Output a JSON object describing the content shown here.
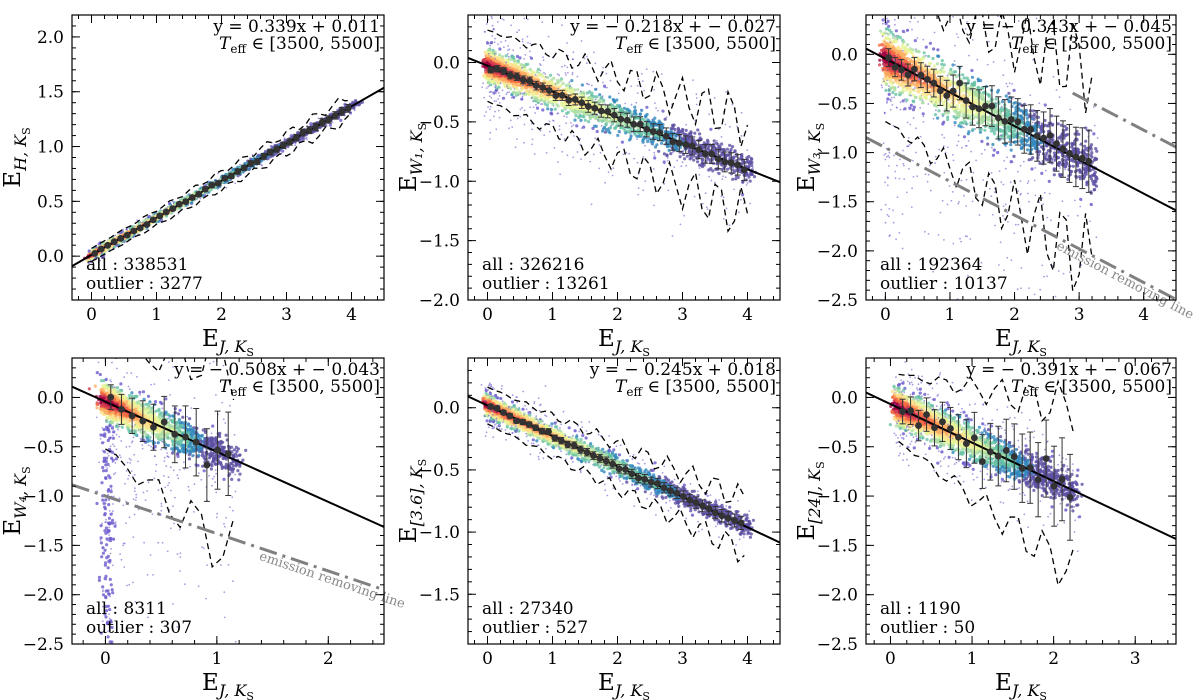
{
  "figure": {
    "x_label": {
      "main": "E",
      "sub": "J, K",
      "subsub": "S"
    }
  },
  "chart_data": [
    {
      "type": "scatter",
      "panel": "H",
      "xlabel": {
        "main": "E",
        "sub": "J, K",
        "subsub": "S"
      },
      "ylabel": {
        "main": "E",
        "sub": "H, K",
        "subsub": "S"
      },
      "xlim": [
        -0.3,
        4.5
      ],
      "ylim": [
        -0.4,
        2.2
      ],
      "xticks": [
        0,
        1,
        2,
        3,
        4
      ],
      "yticks": [
        0.0,
        0.5,
        1.0,
        1.5,
        2.0
      ],
      "x_ticklabels": [
        "0",
        "1",
        "2",
        "3",
        "4"
      ],
      "y_ticklabels": [
        "0.0",
        "0.5",
        "1.0",
        "1.5",
        "2.0"
      ],
      "fit": {
        "slope": 0.339,
        "intercept": 0.011,
        "text": "y = 0.339x + 0.011"
      },
      "teff_text": "∈ [3500, 5500]",
      "counts": {
        "all": "all : 338531",
        "outlier": "outlier : 3277"
      },
      "x_range": [
        0,
        4.0
      ],
      "spread": 0.04,
      "scatter_halo": 0.03,
      "n_bins": 40,
      "err_scale": 0.02,
      "emission_line": null
    },
    {
      "type": "scatter",
      "panel": "W1",
      "xlabel": {
        "main": "E",
        "sub": "J, K",
        "subsub": "S"
      },
      "ylabel": {
        "main": "E",
        "sub": "W₁, K",
        "subsub": "S"
      },
      "xlim": [
        -0.3,
        4.5
      ],
      "ylim": [
        -2.0,
        0.4
      ],
      "xticks": [
        0,
        1,
        2,
        3,
        4
      ],
      "yticks": [
        -2.0,
        -1.5,
        -1.0,
        -0.5,
        0.0
      ],
      "x_ticklabels": [
        "0",
        "1",
        "2",
        "3",
        "4"
      ],
      "y_ticklabels": [
        "−2.0",
        "−1.5",
        "−1.0",
        "−0.5",
        "0.0"
      ],
      "fit": {
        "slope": -0.218,
        "intercept": -0.027,
        "text": "y = − 0.218x + − 0.027"
      },
      "teff_text": "∈ [3500, 5500]",
      "counts": {
        "all": "all : 326216",
        "outlier": "outlier : 13261"
      },
      "x_range": [
        0,
        4.0
      ],
      "spread": 0.15,
      "scatter_halo": 0.3,
      "n_bins": 40,
      "err_scale": 0.05,
      "emission_line": null
    },
    {
      "type": "scatter",
      "panel": "W3",
      "xlabel": {
        "main": "E",
        "sub": "J, K",
        "subsub": "S"
      },
      "ylabel": {
        "main": "E",
        "sub": "W₃, K",
        "subsub": "S"
      },
      "xlim": [
        -0.3,
        4.5
      ],
      "ylim": [
        -2.5,
        0.4
      ],
      "xticks": [
        0,
        1,
        2,
        3,
        4
      ],
      "yticks": [
        -2.5,
        -2.0,
        -1.5,
        -1.0,
        -0.5,
        0.0
      ],
      "x_ticklabels": [
        "0",
        "1",
        "2",
        "3",
        "4"
      ],
      "y_ticklabels": [
        "−2.5",
        "−2.0",
        "−1.5",
        "−1.0",
        "−0.5",
        "0.0"
      ],
      "fit": {
        "slope": -0.343,
        "intercept": -0.045,
        "text": "y = − 0.343x + − 0.045"
      },
      "teff_text": "∈ [3500, 5500]",
      "counts": {
        "all": "all : 192364",
        "outlier": "outlier : 10137"
      },
      "x_range": [
        0,
        3.2
      ],
      "spread": 0.3,
      "scatter_halo": 0.7,
      "n_bins": 32,
      "err_scale": 0.18,
      "emission_line": {
        "slope": -0.343,
        "intercept": -0.95,
        "label": "emission removing line"
      }
    },
    {
      "type": "scatter",
      "panel": "W4",
      "xlabel": {
        "main": "E",
        "sub": "J, K",
        "subsub": "S"
      },
      "ylabel": {
        "main": "E",
        "sub": "W₄, K",
        "subsub": "S"
      },
      "xlim": [
        -0.3,
        2.5
      ],
      "ylim": [
        -2.5,
        0.4
      ],
      "xticks": [
        0,
        1,
        2
      ],
      "yticks": [
        -2.5,
        -2.0,
        -1.5,
        -1.0,
        -0.5,
        0.0
      ],
      "x_ticklabels": [
        "0",
        "1",
        "2"
      ],
      "y_ticklabels": [
        "−2.5",
        "−2.0",
        "−1.5",
        "−1.0",
        "−0.5",
        "0.0"
      ],
      "fit": {
        "slope": -0.508,
        "intercept": -0.043,
        "text": "y = − 0.508x + − 0.043"
      },
      "teff_text": "∈ [3500, 5500]",
      "counts": {
        "all": "all : 8311",
        "outlier": "outlier : 307"
      },
      "x_range": [
        0,
        1.15
      ],
      "spread": 0.2,
      "scatter_halo": 0.6,
      "n_bins": 12,
      "err_scale": 0.25,
      "emission_line": {
        "slope": -0.38,
        "intercept": -1.0,
        "label": "emission removing line"
      }
    },
    {
      "type": "scatter",
      "panel": "I1",
      "xlabel": {
        "main": "E",
        "sub": "J, K",
        "subsub": "S"
      },
      "ylabel": {
        "main": "E",
        "sub": "[3.6], K",
        "subsub": "S"
      },
      "xlim": [
        -0.3,
        4.5
      ],
      "ylim": [
        -1.9,
        0.4
      ],
      "xticks": [
        0,
        1,
        2,
        3,
        4
      ],
      "yticks": [
        -1.5,
        -1.0,
        -0.5,
        0.0
      ],
      "x_ticklabels": [
        "0",
        "1",
        "2",
        "3",
        "4"
      ],
      "y_ticklabels": [
        "−1.5",
        "−1.0",
        "−0.5",
        "0.0"
      ],
      "fit": {
        "slope": -0.245,
        "intercept": 0.018,
        "text": "y = − 0.245x + 0.018"
      },
      "teff_text": "∈ [3500, 5500]",
      "counts": {
        "all": "all : 27340",
        "outlier": "outlier : 527"
      },
      "x_range": [
        0,
        3.95
      ],
      "spread": 0.09,
      "scatter_halo": 0.1,
      "n_bins": 40,
      "err_scale": 0.03,
      "emission_line": null
    },
    {
      "type": "scatter",
      "panel": "M1",
      "xlabel": {
        "main": "E",
        "sub": "J, K",
        "subsub": "S"
      },
      "ylabel": {
        "main": "E",
        "sub": "[24], K",
        "subsub": "S"
      },
      "xlim": [
        -0.3,
        3.5
      ],
      "ylim": [
        -2.5,
        0.4
      ],
      "xticks": [
        0,
        1,
        2,
        3
      ],
      "yticks": [
        -2.5,
        -2.0,
        -1.5,
        -1.0,
        -0.5,
        0.0
      ],
      "x_ticklabels": [
        "0",
        "1",
        "2",
        "3"
      ],
      "y_ticklabels": [
        "−2.5",
        "−2.0",
        "−1.5",
        "−1.0",
        "−0.5",
        "0.0"
      ],
      "fit": {
        "slope": -0.391,
        "intercept": -0.067,
        "text": "y = − 0.391x + − 0.067"
      },
      "teff_text": "∈ [3500, 5500]",
      "counts": {
        "all": "all : 1190",
        "outlier": "outlier : 50"
      },
      "x_range": [
        0.1,
        2.25
      ],
      "spread": 0.2,
      "scatter_halo": 0.25,
      "n_bins": 22,
      "err_scale": 0.25,
      "emission_line": null
    }
  ],
  "colors": {
    "fit_line": "#000000",
    "emission_line": "#808080",
    "envelope": "#000000",
    "binned_point": "#333333",
    "scatter_sparse": "#6a5acd",
    "density_ramp": [
      "#5e4fa2",
      "#3288bd",
      "#66c2a5",
      "#abdda4",
      "#e6f598",
      "#fee08b",
      "#fdae61",
      "#f46d43",
      "#d53e4f",
      "#9e0142"
    ]
  }
}
